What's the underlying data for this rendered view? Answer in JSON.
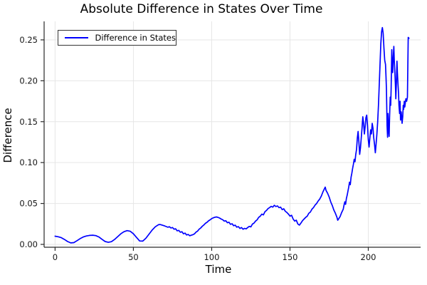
{
  "title": "Absolute Difference in States Over Time",
  "colors": {
    "line": "#0000ff",
    "grid": "#e6e6e6",
    "axis": "#2a2a2a",
    "background": "#ffffff",
    "text": "#000000",
    "legend_border": "#353535"
  },
  "legend": {
    "position": "top-left",
    "entries": [
      {
        "label": "Difference in States",
        "color": "#0000ff"
      }
    ]
  },
  "chart_data": {
    "type": "line",
    "title": "Absolute Difference in States Over Time",
    "xlabel": "Time",
    "ylabel": "Difference",
    "xlim": [
      -7.0,
      233.4
    ],
    "ylim": [
      -0.0035,
      0.2726
    ],
    "grid": true,
    "legend_position": "top-left",
    "x_ticks": [
      0,
      50,
      100,
      150,
      200
    ],
    "x_tick_labels": [
      "0",
      "50",
      "100",
      "150",
      "200"
    ],
    "y_ticks": [
      0.0,
      0.05,
      0.1,
      0.15,
      0.2,
      0.25
    ],
    "y_tick_labels": [
      "0.00",
      "0.05",
      "0.10",
      "0.15",
      "0.20",
      "0.25"
    ],
    "series": [
      {
        "name": "Difference in States",
        "color": "#0000ff",
        "points": [
          [
            0,
            0.01
          ],
          [
            2,
            0.0093
          ],
          [
            4,
            0.0082
          ],
          [
            6,
            0.006
          ],
          [
            8,
            0.0035
          ],
          [
            10,
            0.0018
          ],
          [
            12,
            0.0022
          ],
          [
            14,
            0.0045
          ],
          [
            16,
            0.007
          ],
          [
            18,
            0.009
          ],
          [
            20,
            0.0103
          ],
          [
            22,
            0.011
          ],
          [
            24,
            0.0112
          ],
          [
            26,
            0.0107
          ],
          [
            28,
            0.009
          ],
          [
            30,
            0.0062
          ],
          [
            32,
            0.0035
          ],
          [
            34,
            0.0025
          ],
          [
            36,
            0.0033
          ],
          [
            38,
            0.006
          ],
          [
            40,
            0.0095
          ],
          [
            42,
            0.013
          ],
          [
            44,
            0.0155
          ],
          [
            46,
            0.0168
          ],
          [
            48,
            0.016
          ],
          [
            50,
            0.013
          ],
          [
            52,
            0.0085
          ],
          [
            54,
            0.0042
          ],
          [
            56,
            0.004
          ],
          [
            58,
            0.0075
          ],
          [
            60,
            0.0125
          ],
          [
            62,
            0.0175
          ],
          [
            64,
            0.0215
          ],
          [
            66,
            0.024
          ],
          [
            67,
            0.0243
          ],
          [
            68,
            0.0238
          ],
          [
            70,
            0.0225
          ],
          [
            72,
            0.021
          ],
          [
            73,
            0.0216
          ],
          [
            74,
            0.02
          ],
          [
            75,
            0.0206
          ],
          [
            76,
            0.0185
          ],
          [
            77,
            0.0191
          ],
          [
            78,
            0.0165
          ],
          [
            79,
            0.0171
          ],
          [
            80,
            0.0148
          ],
          [
            81,
            0.0155
          ],
          [
            82,
            0.013
          ],
          [
            83,
            0.0138
          ],
          [
            84,
            0.0115
          ],
          [
            85,
            0.0122
          ],
          [
            86,
            0.0105
          ],
          [
            87,
            0.0112
          ],
          [
            88,
            0.0118
          ],
          [
            89,
            0.0128
          ],
          [
            90,
            0.015
          ],
          [
            91,
            0.0162
          ],
          [
            92,
            0.0185
          ],
          [
            93,
            0.02
          ],
          [
            94,
            0.0222
          ],
          [
            95,
            0.0238
          ],
          [
            96,
            0.0258
          ],
          [
            97,
            0.027
          ],
          [
            98,
            0.0288
          ],
          [
            99,
            0.03
          ],
          [
            100,
            0.0315
          ],
          [
            101,
            0.0325
          ],
          [
            102,
            0.0332
          ],
          [
            103,
            0.0335
          ],
          [
            104,
            0.033
          ],
          [
            105,
            0.0322
          ],
          [
            106,
            0.031
          ],
          [
            107,
            0.0301
          ],
          [
            108,
            0.0285
          ],
          [
            109,
            0.0289
          ],
          [
            110,
            0.0265
          ],
          [
            111,
            0.0271
          ],
          [
            112,
            0.0245
          ],
          [
            113,
            0.0252
          ],
          [
            114,
            0.0228
          ],
          [
            115,
            0.0235
          ],
          [
            116,
            0.021
          ],
          [
            117,
            0.0218
          ],
          [
            118,
            0.0195
          ],
          [
            119,
            0.0205
          ],
          [
            120,
            0.0185
          ],
          [
            121,
            0.0196
          ],
          [
            122,
            0.019
          ],
          [
            123,
            0.0206
          ],
          [
            124,
            0.022
          ],
          [
            125,
            0.0214
          ],
          [
            126,
            0.0248
          ],
          [
            127,
            0.026
          ],
          [
            128,
            0.0285
          ],
          [
            129,
            0.03
          ],
          [
            130,
            0.033
          ],
          [
            131,
            0.0345
          ],
          [
            132,
            0.037
          ],
          [
            133,
            0.036
          ],
          [
            134,
            0.04
          ],
          [
            135,
            0.0415
          ],
          [
            136,
            0.0438
          ],
          [
            137,
            0.045
          ],
          [
            138,
            0.0465
          ],
          [
            139,
            0.0455
          ],
          [
            140,
            0.0478
          ],
          [
            141,
            0.0462
          ],
          [
            142,
            0.047
          ],
          [
            143,
            0.0448
          ],
          [
            144,
            0.0455
          ],
          [
            145,
            0.0425
          ],
          [
            146,
            0.0435
          ],
          [
            147,
            0.0405
          ],
          [
            148,
            0.039
          ],
          [
            149,
            0.037
          ],
          [
            150,
            0.0345
          ],
          [
            151,
            0.0356
          ],
          [
            152,
            0.031
          ],
          [
            153,
            0.0285
          ],
          [
            154,
            0.0296
          ],
          [
            155,
            0.025
          ],
          [
            156,
            0.0235
          ],
          [
            157,
            0.0261
          ],
          [
            158,
            0.029
          ],
          [
            159,
            0.031
          ],
          [
            160,
            0.033
          ],
          [
            161,
            0.0345
          ],
          [
            162,
            0.038
          ],
          [
            163,
            0.0395
          ],
          [
            164,
            0.043
          ],
          [
            165,
            0.045
          ],
          [
            166,
            0.048
          ],
          [
            167,
            0.05
          ],
          [
            168,
            0.053
          ],
          [
            169,
            0.0555
          ],
          [
            170,
            0.059
          ],
          [
            171,
            0.064
          ],
          [
            172,
            0.068
          ],
          [
            172.5,
            0.07
          ],
          [
            173,
            0.066
          ],
          [
            174,
            0.0625
          ],
          [
            175,
            0.058
          ],
          [
            176,
            0.052
          ],
          [
            177,
            0.0475
          ],
          [
            178,
            0.042
          ],
          [
            179,
            0.038
          ],
          [
            180,
            0.033
          ],
          [
            180.5,
            0.0295
          ],
          [
            181,
            0.031
          ],
          [
            182,
            0.034
          ],
          [
            183,
            0.039
          ],
          [
            184,
            0.043
          ],
          [
            184.5,
            0.048
          ],
          [
            185,
            0.052
          ],
          [
            185.5,
            0.049
          ],
          [
            186,
            0.056
          ],
          [
            186.5,
            0.06
          ],
          [
            187,
            0.065
          ],
          [
            187.5,
            0.07
          ],
          [
            188,
            0.076
          ],
          [
            188.5,
            0.073
          ],
          [
            189,
            0.082
          ],
          [
            189.5,
            0.087
          ],
          [
            190,
            0.093
          ],
          [
            190.5,
            0.098
          ],
          [
            191,
            0.104
          ],
          [
            191.5,
            0.101
          ],
          [
            192,
            0.11
          ],
          [
            192.5,
            0.116
          ],
          [
            193,
            0.13
          ],
          [
            193.5,
            0.138
          ],
          [
            194,
            0.125
          ],
          [
            194.5,
            0.11
          ],
          [
            195,
            0.118
          ],
          [
            195.5,
            0.13
          ],
          [
            196,
            0.142
          ],
          [
            196.5,
            0.156
          ],
          [
            197,
            0.148
          ],
          [
            197.5,
            0.135
          ],
          [
            198,
            0.144
          ],
          [
            198.5,
            0.155
          ],
          [
            199,
            0.158
          ],
          [
            199.5,
            0.145
          ],
          [
            200,
            0.128
          ],
          [
            200.5,
            0.119
          ],
          [
            201,
            0.13
          ],
          [
            201.5,
            0.14
          ],
          [
            202,
            0.135
          ],
          [
            202.5,
            0.148
          ],
          [
            203,
            0.142
          ],
          [
            203.5,
            0.13
          ],
          [
            204,
            0.122
          ],
          [
            204.5,
            0.112
          ],
          [
            205,
            0.123
          ],
          [
            205.5,
            0.135
          ],
          [
            206,
            0.15
          ],
          [
            206.5,
            0.17
          ],
          [
            207,
            0.195
          ],
          [
            207.5,
            0.22
          ],
          [
            208,
            0.245
          ],
          [
            208.5,
            0.26
          ],
          [
            209,
            0.265
          ],
          [
            209.5,
            0.258
          ],
          [
            210,
            0.24
          ],
          [
            210.5,
            0.225
          ],
          [
            211,
            0.22
          ],
          [
            211.3,
            0.205
          ],
          [
            211.6,
            0.19
          ],
          [
            212,
            0.145
          ],
          [
            212.3,
            0.131
          ],
          [
            212.6,
            0.16
          ],
          [
            213,
            0.14
          ],
          [
            213.3,
            0.132
          ],
          [
            213.6,
            0.155
          ],
          [
            214,
            0.18
          ],
          [
            214.3,
            0.17
          ],
          [
            214.6,
            0.19
          ],
          [
            215,
            0.238
          ],
          [
            215.3,
            0.22
          ],
          [
            215.6,
            0.21
          ],
          [
            216,
            0.23
          ],
          [
            216.3,
            0.242
          ],
          [
            216.6,
            0.225
          ],
          [
            217,
            0.21
          ],
          [
            217.3,
            0.195
          ],
          [
            217.6,
            0.178
          ],
          [
            218,
            0.2
          ],
          [
            218.3,
            0.224
          ],
          [
            218.6,
            0.21
          ],
          [
            219,
            0.195
          ],
          [
            219.3,
            0.185
          ],
          [
            219.6,
            0.17
          ],
          [
            220,
            0.16
          ],
          [
            220.3,
            0.175
          ],
          [
            220.6,
            0.152
          ],
          [
            221,
            0.162
          ],
          [
            221.3,
            0.156
          ],
          [
            221.6,
            0.148
          ],
          [
            222,
            0.156
          ],
          [
            222.3,
            0.17
          ],
          [
            222.6,
            0.165
          ],
          [
            223,
            0.175
          ],
          [
            223.3,
            0.168
          ],
          [
            223.6,
            0.172
          ],
          [
            224,
            0.178
          ],
          [
            224.5,
            0.175
          ],
          [
            225,
            0.18
          ],
          [
            225.5,
            0.253
          ],
          [
            226,
            0.252
          ]
        ]
      }
    ]
  }
}
